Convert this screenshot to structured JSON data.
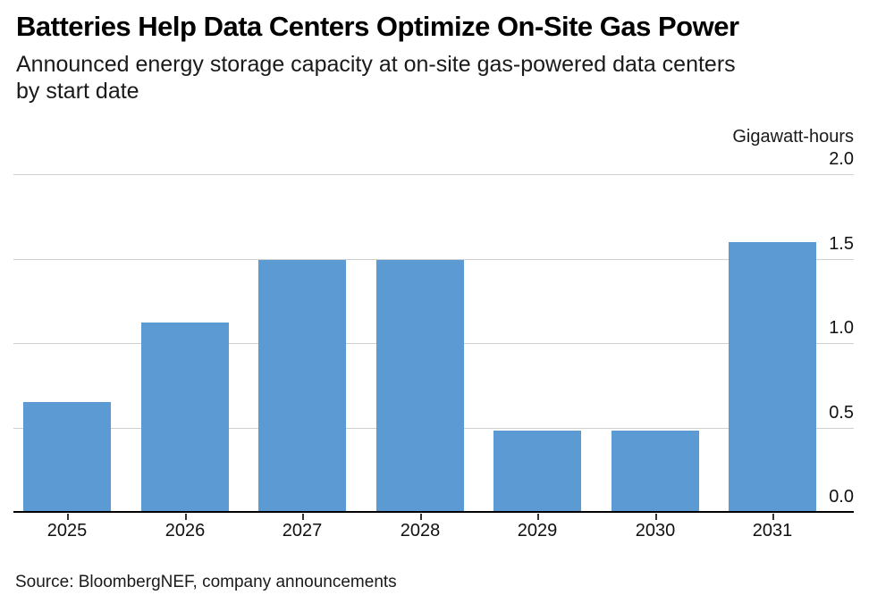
{
  "header": {
    "title": "Batteries Help Data Centers Optimize On-Site Gas Power",
    "subtitle_lines": [
      "Announced energy storage capacity at on-site gas-powered data centers",
      "by start date"
    ]
  },
  "chart_data": {
    "type": "bar",
    "title": "Batteries Help Data Centers Optimize On-Site Gas Power",
    "subtitle": "Announced energy storage capacity at on-site gas-powered data centers by start date",
    "unit_label": "Gigawatt-hours",
    "categories": [
      "2025",
      "2026",
      "2027",
      "2028",
      "2029",
      "2030",
      "2031"
    ],
    "values": [
      0.65,
      1.12,
      1.49,
      1.49,
      0.48,
      0.48,
      1.6
    ],
    "xlabel": "",
    "ylabel": "Gigawatt-hours",
    "ylim": [
      0,
      2.0
    ],
    "yticks": [
      {
        "value": 0.0,
        "label": "0.0"
      },
      {
        "value": 0.5,
        "label": "0.5"
      },
      {
        "value": 1.0,
        "label": "1.0"
      },
      {
        "value": 1.5,
        "label": "1.5"
      },
      {
        "value": 2.0,
        "label": "2.0"
      }
    ],
    "grid": true,
    "legend": false,
    "bar_color": "#5b9ad3",
    "grid_color": "#cfcfcf",
    "axis_color": "#000000",
    "text_color": "#111111"
  },
  "footer": {
    "source": "Source: BloombergNEF, company announcements"
  }
}
